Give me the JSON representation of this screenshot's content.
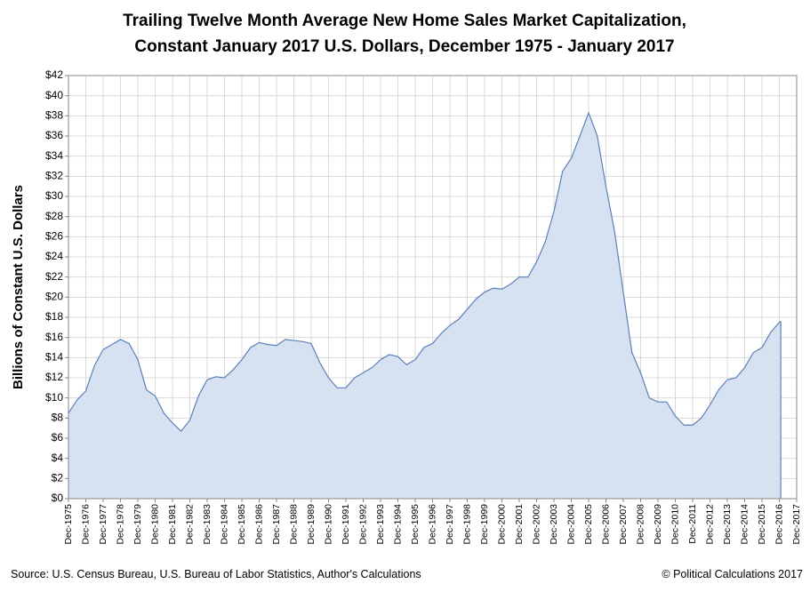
{
  "chart_data": {
    "type": "area",
    "title": [
      "Trailing Twelve Month Average New Home Sales Market Capitalization,",
      "Constant January 2017 U.S. Dollars, December 1975 - January 2017"
    ],
    "y_label": "Billions of Constant U.S. Dollars",
    "source": "Source: U.S. Census Bureau, U.S. Bureau of Labor Statistics, Author's Calculations",
    "credit": "© Political Calculations 2017",
    "grid": true,
    "color": "#5b80b8",
    "fill": "#d6e1f1",
    "x": [
      "Dec-1975",
      "Jun-1976",
      "Dec-1976",
      "Jun-1977",
      "Dec-1977",
      "Jun-1978",
      "Dec-1978",
      "Jun-1979",
      "Dec-1979",
      "Jun-1980",
      "Dec-1980",
      "Jun-1981",
      "Dec-1981",
      "Jun-1982",
      "Dec-1982",
      "Jun-1983",
      "Dec-1983",
      "Jun-1984",
      "Dec-1984",
      "Jun-1985",
      "Dec-1985",
      "Jun-1986",
      "Dec-1986",
      "Jun-1987",
      "Dec-1987",
      "Jun-1988",
      "Dec-1988",
      "Jun-1989",
      "Dec-1989",
      "Jun-1990",
      "Dec-1990",
      "Jun-1991",
      "Dec-1991",
      "Jun-1992",
      "Dec-1992",
      "Jun-1993",
      "Dec-1993",
      "Jun-1994",
      "Dec-1994",
      "Jun-1995",
      "Dec-1995",
      "Jun-1996",
      "Dec-1996",
      "Jun-1997",
      "Dec-1997",
      "Jun-1998",
      "Dec-1998",
      "Jun-1999",
      "Dec-1999",
      "Jun-2000",
      "Dec-2000",
      "Jun-2001",
      "Dec-2001",
      "Jun-2002",
      "Dec-2002",
      "Jun-2003",
      "Dec-2003",
      "Jun-2004",
      "Dec-2004",
      "Jun-2005",
      "Dec-2005",
      "Jun-2006",
      "Dec-2006",
      "Jun-2007",
      "Dec-2007",
      "Jun-2008",
      "Dec-2008",
      "Jun-2009",
      "Dec-2009",
      "Jun-2010",
      "Dec-2010",
      "Jun-2011",
      "Dec-2011",
      "Jun-2012",
      "Dec-2012",
      "Jun-2013",
      "Dec-2013",
      "Jun-2014",
      "Dec-2014",
      "Jun-2015",
      "Dec-2015",
      "Jun-2016",
      "Dec-2016",
      "Jan-2017"
    ],
    "values": [
      8.5,
      9.8,
      10.7,
      13.2,
      14.8,
      15.3,
      15.8,
      15.4,
      13.8,
      10.8,
      10.2,
      8.5,
      7.5,
      6.7,
      7.8,
      10.2,
      11.8,
      12.1,
      12.0,
      12.8,
      13.8,
      15.0,
      15.5,
      15.3,
      15.2,
      15.8,
      15.7,
      15.6,
      15.4,
      13.5,
      12.0,
      11.0,
      11.0,
      12.0,
      12.5,
      13.0,
      13.8,
      14.3,
      14.1,
      13.3,
      13.8,
      15.0,
      15.4,
      16.4,
      17.2,
      17.8,
      18.8,
      19.8,
      20.5,
      20.9,
      20.8,
      21.3,
      22.0,
      22.0,
      23.5,
      25.5,
      28.5,
      32.5,
      33.8,
      36.0,
      38.3,
      36.0,
      31.0,
      26.5,
      20.5,
      14.5,
      12.5,
      10.0,
      9.6,
      9.6,
      8.2,
      7.3,
      7.3,
      8.0,
      9.3,
      10.8,
      11.8,
      12.0,
      13.0,
      14.5,
      15.0,
      16.5,
      17.5,
      17.6
    ],
    "xlim": [
      "Dec-1975",
      "Dec-2017"
    ],
    "xticks": [
      "Dec-1975",
      "Dec-1976",
      "Dec-1977",
      "Dec-1978",
      "Dec-1979",
      "Dec-1980",
      "Dec-1981",
      "Dec-1982",
      "Dec-1983",
      "Dec-1984",
      "Dec-1985",
      "Dec-1986",
      "Dec-1987",
      "Dec-1988",
      "Dec-1989",
      "Dec-1990",
      "Dec-1991",
      "Dec-1992",
      "Dec-1993",
      "Dec-1994",
      "Dec-1995",
      "Dec-1996",
      "Dec-1997",
      "Dec-1998",
      "Dec-1999",
      "Dec-2000",
      "Dec-2001",
      "Dec-2002",
      "Dec-2003",
      "Dec-2004",
      "Dec-2005",
      "Dec-2006",
      "Dec-2007",
      "Dec-2008",
      "Dec-2009",
      "Dec-2010",
      "Dec-2011",
      "Dec-2012",
      "Dec-2013",
      "Dec-2014",
      "Dec-2015",
      "Dec-2016",
      "Dec-2017"
    ],
    "ylim": [
      0,
      42
    ],
    "yticks": [
      {
        "value": 0,
        "label": "$0"
      },
      {
        "value": 2,
        "label": "$2"
      },
      {
        "value": 4,
        "label": "$4"
      },
      {
        "value": 6,
        "label": "$6"
      },
      {
        "value": 8,
        "label": "$8"
      },
      {
        "value": 10,
        "label": "$10"
      },
      {
        "value": 12,
        "label": "$12"
      },
      {
        "value": 14,
        "label": "$14"
      },
      {
        "value": 16,
        "label": "$16"
      },
      {
        "value": 18,
        "label": "$18"
      },
      {
        "value": 20,
        "label": "$20"
      },
      {
        "value": 22,
        "label": "$22"
      },
      {
        "value": 24,
        "label": "$24"
      },
      {
        "value": 26,
        "label": "$26"
      },
      {
        "value": 28,
        "label": "$28"
      },
      {
        "value": 30,
        "label": "$30"
      },
      {
        "value": 32,
        "label": "$32"
      },
      {
        "value": 34,
        "label": "$34"
      },
      {
        "value": 36,
        "label": "$36"
      },
      {
        "value": 38,
        "label": "$38"
      },
      {
        "value": 40,
        "label": "$40"
      },
      {
        "value": 42,
        "label": "$42"
      }
    ]
  }
}
